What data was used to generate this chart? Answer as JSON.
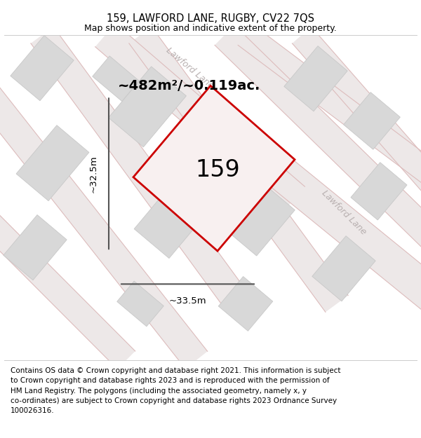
{
  "title": "159, LAWFORD LANE, RUGBY, CV22 7QS",
  "subtitle": "Map shows position and indicative extent of the property.",
  "footer_lines": [
    "Contains OS data © Crown copyright and database right 2021. This information is subject",
    "to Crown copyright and database rights 2023 and is reproduced with the permission of",
    "HM Land Registry. The polygons (including the associated geometry, namely x, y",
    "co-ordinates) are subject to Crown copyright and database rights 2023 Ordnance Survey",
    "100026316."
  ],
  "area_label": "~482m²/~0.119ac.",
  "width_label": "~33.5m",
  "height_label": "~32.5m",
  "plot_number": "159",
  "map_bg": "#f8f8f8",
  "building_color": "#d8d8d8",
  "building_edge": "#c8c8c8",
  "road_fill": "#ede8e8",
  "road_edge": "#ddbcbc",
  "plot_edge": "#cc0000",
  "plot_fill": "#f8f0f0",
  "dim_color": "#555555",
  "road_label_color": "#b8b0b0",
  "title_fontsize": 10.5,
  "subtitle_fontsize": 9,
  "footer_fontsize": 7.5,
  "area_fontsize": 14,
  "number_fontsize": 24,
  "road_label_fontsize": 9,
  "dim_fontsize": 9.5
}
